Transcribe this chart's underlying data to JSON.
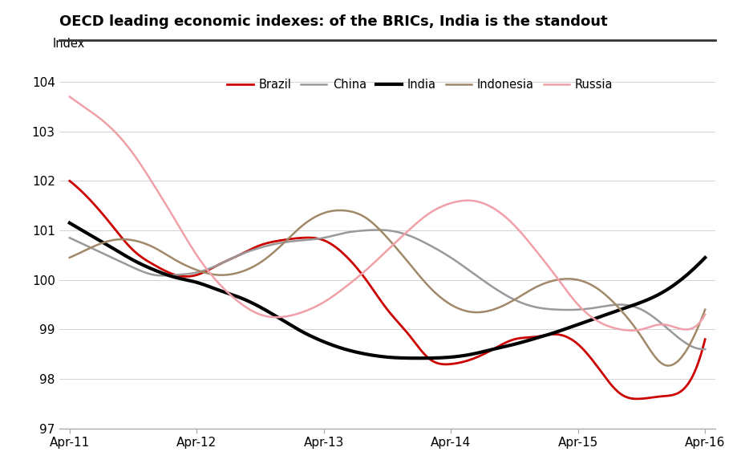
{
  "title": "OECD leading economic indexes: of the BRICs, India is the standout",
  "ylabel": "Index",
  "ylim": [
    97,
    104.5
  ],
  "yticks": [
    97,
    98,
    99,
    100,
    101,
    102,
    103,
    104
  ],
  "background_color": "#ffffff",
  "x_labels": [
    "Apr-11",
    "Apr-12",
    "Apr-13",
    "Apr-14",
    "Apr-15",
    "Apr-16"
  ],
  "x_positions": [
    0,
    12,
    24,
    36,
    48,
    60
  ],
  "series": {
    "Brazil": {
      "color": "#cc0000",
      "linewidth": 2.0,
      "x": [
        0,
        2,
        4,
        6,
        8,
        10,
        12,
        14,
        16,
        18,
        20,
        22,
        24,
        26,
        28,
        30,
        32,
        34,
        36,
        38,
        40,
        42,
        44,
        46,
        48,
        50,
        52,
        54,
        56,
        58,
        60
      ],
      "y": [
        102.0,
        101.6,
        101.1,
        100.6,
        100.3,
        100.1,
        100.1,
        100.3,
        100.5,
        100.7,
        100.8,
        100.85,
        100.8,
        100.5,
        100.0,
        99.4,
        98.9,
        98.4,
        98.3,
        98.4,
        98.6,
        98.8,
        98.85,
        98.9,
        98.7,
        98.2,
        97.7,
        97.6,
        97.65,
        97.8,
        98.8
      ]
    },
    "China": {
      "color": "#999999",
      "linewidth": 1.8,
      "x": [
        0,
        2,
        4,
        6,
        8,
        10,
        12,
        14,
        16,
        18,
        20,
        22,
        24,
        26,
        28,
        30,
        32,
        34,
        36,
        38,
        40,
        42,
        44,
        46,
        48,
        50,
        52,
        54,
        56,
        58,
        60
      ],
      "y": [
        100.85,
        100.65,
        100.45,
        100.25,
        100.1,
        100.1,
        100.15,
        100.3,
        100.5,
        100.65,
        100.75,
        100.8,
        100.85,
        100.95,
        101.0,
        101.0,
        100.9,
        100.7,
        100.45,
        100.15,
        99.85,
        99.6,
        99.45,
        99.4,
        99.4,
        99.45,
        99.5,
        99.4,
        99.1,
        98.75,
        98.6
      ]
    },
    "India": {
      "color": "#000000",
      "linewidth": 3.0,
      "x": [
        0,
        2,
        4,
        6,
        8,
        10,
        12,
        14,
        16,
        18,
        20,
        22,
        24,
        26,
        28,
        30,
        32,
        34,
        36,
        38,
        40,
        42,
        44,
        46,
        48,
        50,
        52,
        54,
        56,
        58,
        60
      ],
      "y": [
        101.15,
        100.9,
        100.65,
        100.4,
        100.2,
        100.05,
        99.95,
        99.8,
        99.65,
        99.45,
        99.2,
        98.95,
        98.75,
        98.6,
        98.5,
        98.44,
        98.42,
        98.42,
        98.44,
        98.5,
        98.6,
        98.7,
        98.82,
        98.95,
        99.1,
        99.25,
        99.4,
        99.55,
        99.75,
        100.05,
        100.45
      ]
    },
    "Indonesia": {
      "color": "#a08868",
      "linewidth": 1.8,
      "x": [
        0,
        2,
        4,
        6,
        8,
        10,
        12,
        14,
        16,
        18,
        20,
        22,
        24,
        26,
        28,
        30,
        32,
        34,
        36,
        38,
        40,
        42,
        44,
        46,
        48,
        50,
        52,
        54,
        56,
        58,
        60
      ],
      "y": [
        100.45,
        100.65,
        100.8,
        100.8,
        100.65,
        100.4,
        100.2,
        100.1,
        100.15,
        100.35,
        100.7,
        101.1,
        101.35,
        101.4,
        101.25,
        100.85,
        100.35,
        99.85,
        99.5,
        99.35,
        99.4,
        99.6,
        99.85,
        100.0,
        100.0,
        99.8,
        99.4,
        98.85,
        98.3,
        98.5,
        99.4
      ]
    },
    "Russia": {
      "color": "#f0a0a8",
      "linewidth": 1.8,
      "x": [
        0,
        2,
        4,
        6,
        8,
        10,
        12,
        14,
        16,
        18,
        20,
        22,
        24,
        26,
        28,
        30,
        32,
        34,
        36,
        38,
        40,
        42,
        44,
        46,
        48,
        50,
        52,
        54,
        56,
        58,
        60
      ],
      "y": [
        103.7,
        103.4,
        103.05,
        102.55,
        101.9,
        101.2,
        100.5,
        99.95,
        99.55,
        99.3,
        99.25,
        99.35,
        99.55,
        99.85,
        100.2,
        100.6,
        101.0,
        101.35,
        101.55,
        101.6,
        101.45,
        101.1,
        100.6,
        100.05,
        99.5,
        99.15,
        99.0,
        99.0,
        99.1,
        99.0,
        99.3
      ]
    }
  },
  "legend_order": [
    "Brazil",
    "China",
    "India",
    "Indonesia",
    "Russia"
  ]
}
